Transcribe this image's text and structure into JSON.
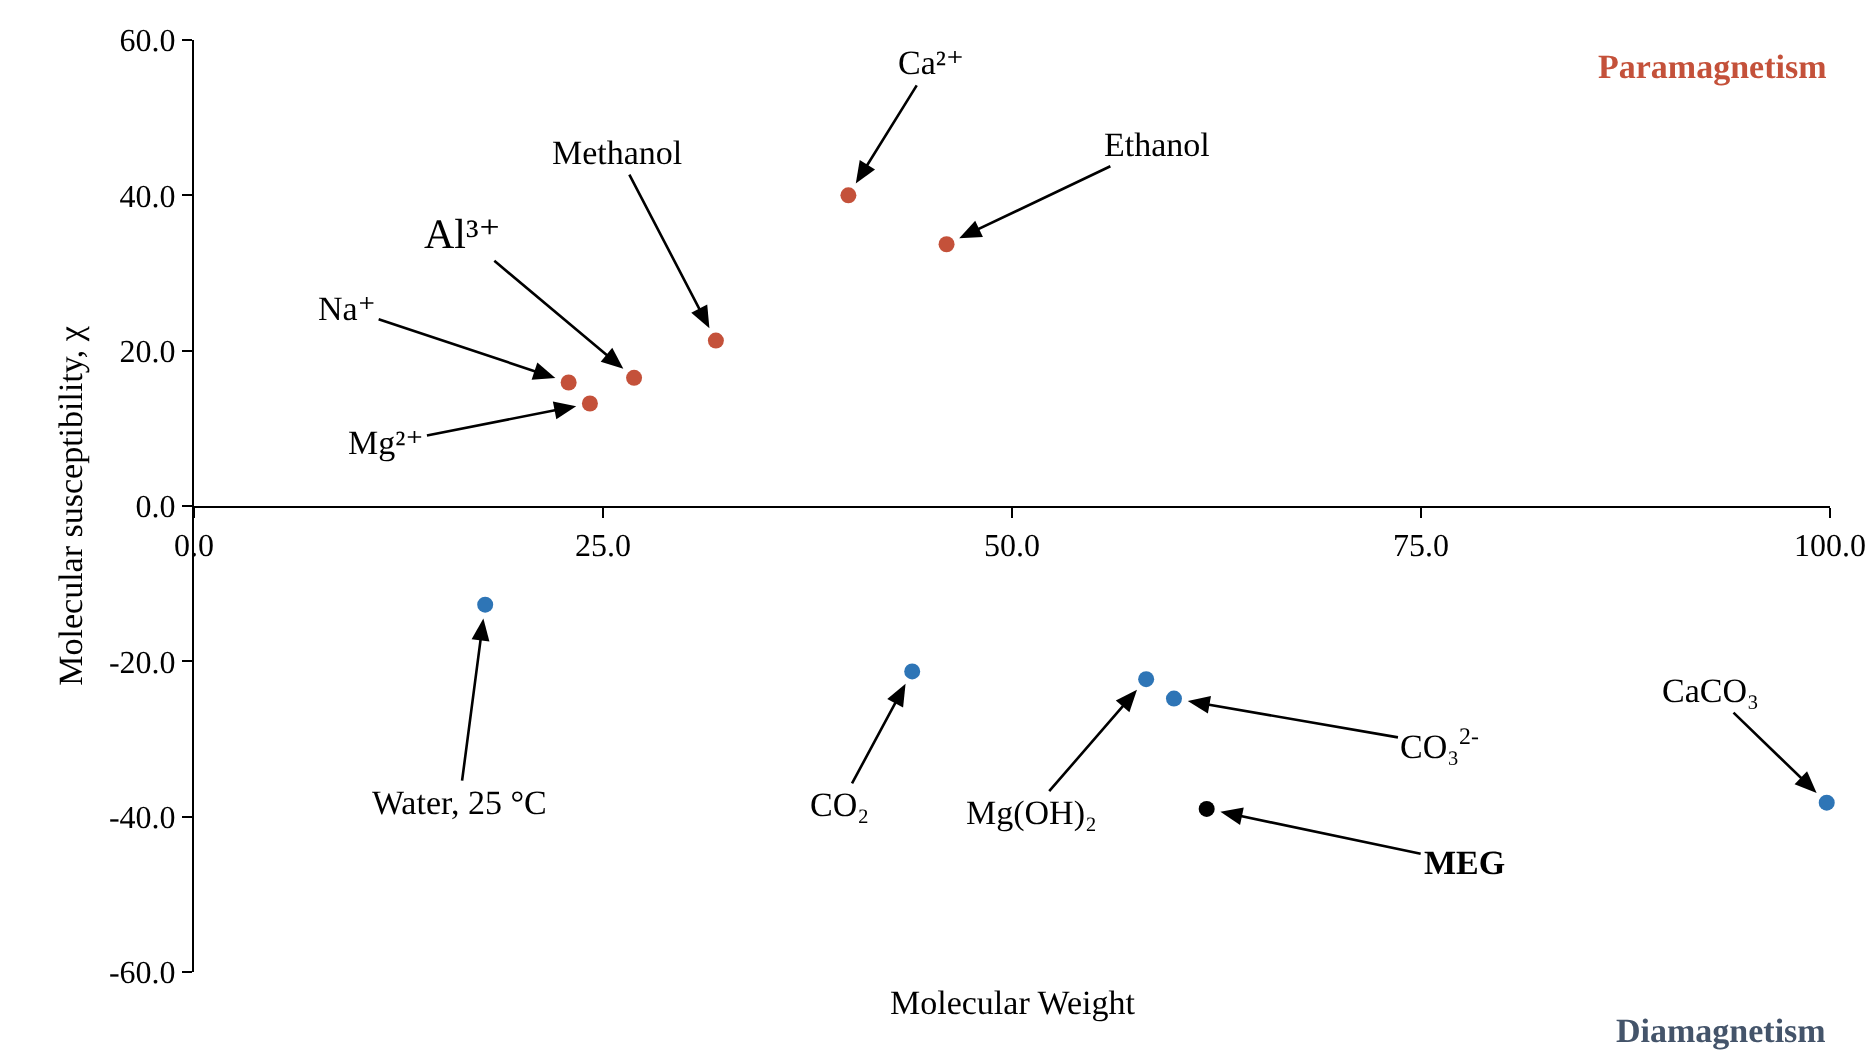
{
  "chart_data": {
    "type": "scatter",
    "xlabel": "Molecular Weight",
    "ylabel": "Molecular susceptibility, χ",
    "series": [
      {
        "color": "#c4513a",
        "x": [
          40.0,
          46.0,
          31.9,
          26.9,
          22.9,
          24.2
        ],
        "values": [
          40.0,
          33.7,
          21.3,
          16.5,
          15.9,
          13.2
        ]
      },
      {
        "color": "#2e75b6",
        "x": [
          17.8,
          43.9,
          58.2,
          59.9,
          99.8
        ],
        "values": [
          -12.7,
          -21.3,
          -22.3,
          -24.8,
          -38.2
        ]
      },
      {
        "color": "#000000",
        "x": [
          61.9
        ],
        "values": [
          -39.0
        ]
      }
    ],
    "annotations": [
      {
        "text": "Ca²⁺",
        "x": 40.0,
        "y": 40.0
      },
      {
        "text": "Ethanol",
        "x": 46.0,
        "y": 33.7
      },
      {
        "text": "Methanol",
        "x": 31.9,
        "y": 21.3
      },
      {
        "text": "Al³⁺",
        "x": 26.9,
        "y": 16.5
      },
      {
        "text": "Na⁺",
        "x": 22.9,
        "y": 15.9
      },
      {
        "text": "Mg²⁺",
        "x": 24.2,
        "y": 13.2
      },
      {
        "text": "Water, 25 °C",
        "x": 17.8,
        "y": -12.7
      },
      {
        "text": "CO₂",
        "x": 43.9,
        "y": -21.3
      },
      {
        "text": "Mg(OH)₂",
        "x": 58.2,
        "y": -22.3
      },
      {
        "text": "CO₃$^{2-}$",
        "x": 59.9,
        "y": -24.8
      },
      {
        "text": "MEG",
        "x": 61.9,
        "y": -39.0
      },
      {
        "text": "CaCO₃",
        "x": 99.8,
        "y": -38.2
      },
      "Paramagnetism",
      "Diamagnetism"
    ],
    "xlim": [
      0,
      100
    ],
    "xticks": [
      {
        "value": 0,
        "label": "0.0"
      },
      {
        "value": 25,
        "label": "25.0"
      },
      {
        "value": 50,
        "label": "50.0"
      },
      {
        "value": 75,
        "label": "75.0"
      },
      {
        "value": 100,
        "label": "100.0"
      }
    ],
    "ylim": [
      -60,
      60
    ],
    "yticks": [
      {
        "value": -60,
        "label": "-60.0"
      },
      {
        "value": -40,
        "label": "-40.0"
      },
      {
        "value": -20,
        "label": "-20.0"
      },
      {
        "value": 0,
        "label": "0.0"
      },
      {
        "value": 20,
        "label": "20.0"
      },
      {
        "value": 40,
        "label": "40.0"
      },
      {
        "value": 60,
        "label": "60.0"
      }
    ],
    "grid": false,
    "marker": "circle"
  }
}
